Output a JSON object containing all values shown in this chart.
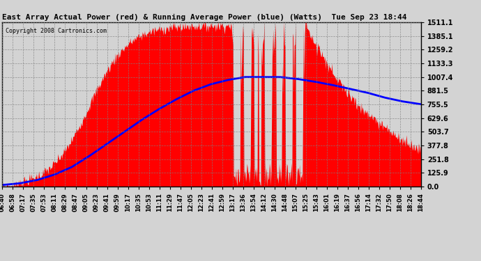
{
  "title": "East Array Actual Power (red) & Running Average Power (blue) (Watts)  Tue Sep 23 18:44",
  "copyright": "Copyright 2008 Cartronics.com",
  "yticks": [
    0.0,
    125.9,
    251.8,
    377.8,
    503.7,
    629.6,
    755.5,
    881.5,
    1007.4,
    1133.3,
    1259.2,
    1385.1,
    1511.1
  ],
  "ymax": 1511.1,
  "bg_color": "#d3d3d3",
  "fill_color": "red",
  "avg_color": "blue",
  "xtick_labels": [
    "06:40",
    "06:58",
    "07:17",
    "07:35",
    "07:53",
    "08:11",
    "08:29",
    "08:47",
    "09:05",
    "09:23",
    "09:41",
    "09:59",
    "10:17",
    "10:35",
    "10:53",
    "11:11",
    "11:29",
    "11:47",
    "12:05",
    "12:23",
    "12:41",
    "12:59",
    "13:17",
    "13:36",
    "13:54",
    "14:12",
    "14:30",
    "14:48",
    "15:07",
    "15:25",
    "15:43",
    "16:01",
    "16:19",
    "16:37",
    "16:56",
    "17:14",
    "17:32",
    "17:50",
    "18:08",
    "18:26",
    "18:44"
  ]
}
